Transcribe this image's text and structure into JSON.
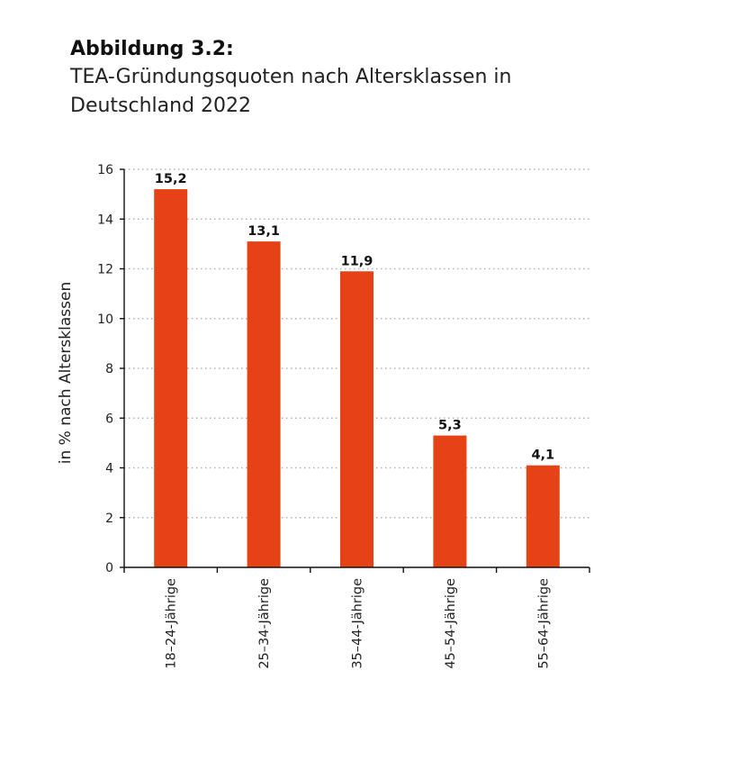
{
  "figure": {
    "label": "Abbildung 3.2:",
    "title": "TEA-Gründungsquoten nach Altersklassen in Deutschland 2022"
  },
  "colors": {
    "bar": "#e54316",
    "grid": "#b3b3b3",
    "axis": "#111111"
  },
  "chart_data": {
    "type": "bar",
    "title": "TEA-Gründungsquoten nach Altersklassen in Deutschland 2022",
    "xlabel": "",
    "ylabel": "in % nach Altersklassen",
    "categories": [
      "18–24-Jährige",
      "25–34-Jährige",
      "35–44-Jährige",
      "45–54-Jährige",
      "55–64-Jährige"
    ],
    "values": [
      15.2,
      13.1,
      11.9,
      5.3,
      4.1
    ],
    "value_labels": [
      "15,2",
      "13,1",
      "11,9",
      "5,3",
      "4,1"
    ],
    "ylim": [
      0,
      16
    ],
    "yticks": [
      0,
      2,
      4,
      6,
      8,
      10,
      12,
      14,
      16
    ],
    "grid": "horizontal dotted",
    "legend": "none"
  }
}
